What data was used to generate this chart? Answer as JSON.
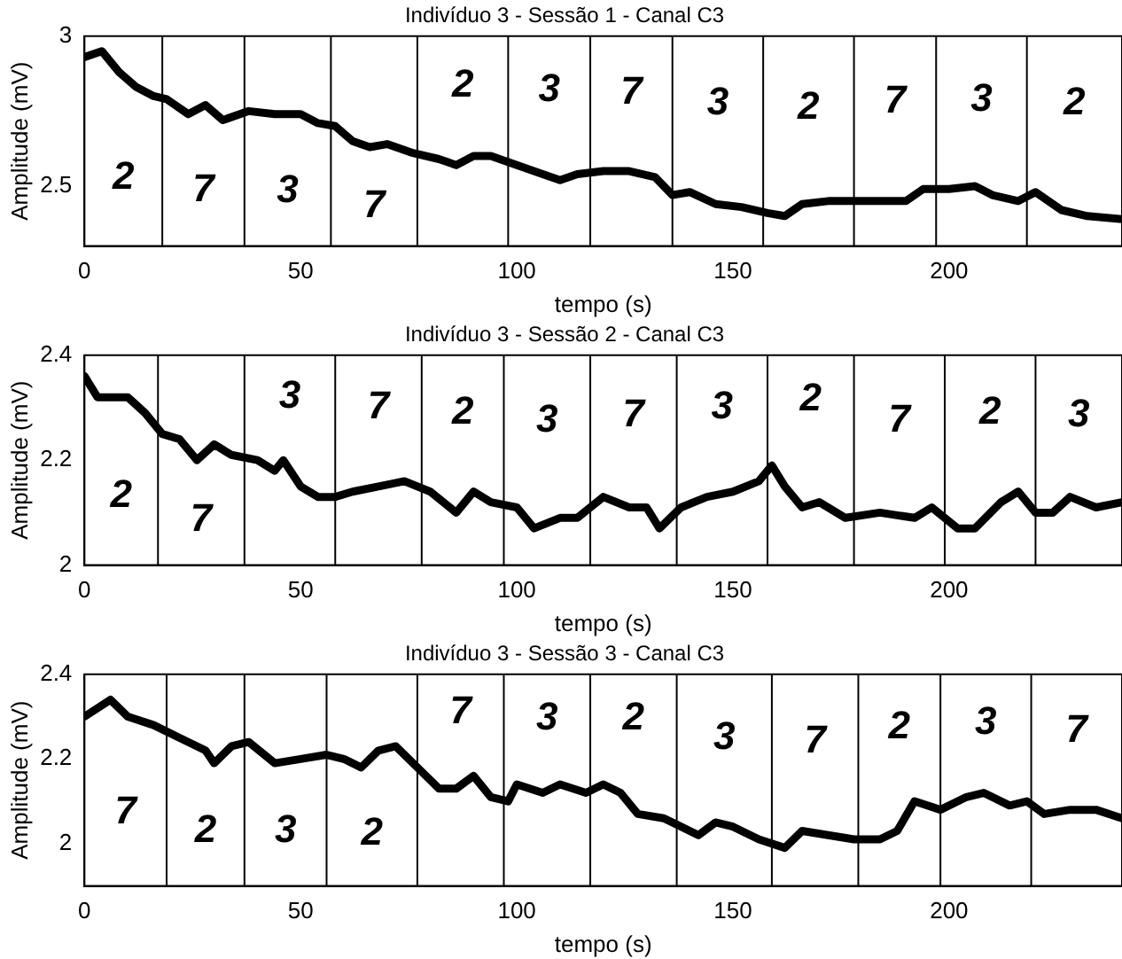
{
  "chart_data": [
    {
      "type": "line",
      "title": "Indivíduo 3 - Sessão 1 - Canal C3",
      "xlabel": "tempo (s)",
      "ylabel": "Amplitude (mV)",
      "xlim": [
        0,
        240
      ],
      "xticks": [
        0,
        50,
        100,
        150,
        200
      ],
      "ylim": [
        2.3,
        3
      ],
      "yticks": [
        2.5,
        3
      ],
      "x": [
        0,
        4,
        8,
        12,
        16,
        19,
        24,
        28,
        32,
        38,
        44,
        50,
        54,
        58,
        62,
        66,
        70,
        76,
        82,
        86,
        90,
        94,
        100,
        106,
        110,
        114,
        120,
        126,
        132,
        136,
        140,
        146,
        152,
        158,
        162,
        166,
        172,
        180,
        190,
        194,
        200,
        206,
        210,
        216,
        220,
        226,
        232,
        240
      ],
      "series": [
        {
          "color": "#000000",
          "values": [
            2.93,
            2.95,
            2.88,
            2.83,
            2.8,
            2.79,
            2.74,
            2.77,
            2.72,
            2.75,
            2.74,
            2.74,
            2.71,
            2.7,
            2.65,
            2.63,
            2.64,
            2.61,
            2.59,
            2.57,
            2.6,
            2.6,
            2.57,
            2.54,
            2.52,
            2.54,
            2.55,
            2.55,
            2.53,
            2.47,
            2.48,
            2.44,
            2.43,
            2.41,
            2.4,
            2.44,
            2.45,
            2.45,
            2.45,
            2.49,
            2.49,
            2.5,
            2.47,
            2.45,
            2.48,
            2.42,
            2.4,
            2.39
          ]
        }
      ],
      "ref_lines": [
        {
          "axis": "x",
          "value": 18,
          "color": "#000000"
        },
        {
          "axis": "x",
          "value": 37,
          "color": "#000000"
        },
        {
          "axis": "x",
          "value": 57,
          "color": "#000000"
        },
        {
          "axis": "x",
          "value": 77,
          "color": "#000000"
        },
        {
          "axis": "x",
          "value": 98,
          "color": "#000000"
        },
        {
          "axis": "x",
          "value": 117,
          "color": "#000000"
        },
        {
          "axis": "x",
          "value": 136,
          "color": "#000000"
        },
        {
          "axis": "x",
          "value": 157,
          "color": "#000000"
        },
        {
          "axis": "x",
          "value": 178,
          "color": "#000000"
        },
        {
          "axis": "x",
          "value": 197,
          "color": "#000000"
        },
        {
          "axis": "x",
          "value": 218,
          "color": "#000000"
        }
      ],
      "annotations": [
        "2",
        "7",
        "3",
        "7",
        "2",
        "3",
        "7",
        "3",
        "2",
        "7",
        "3",
        "2"
      ]
    },
    {
      "type": "line",
      "title": "Indivíduo 3 - Sessão 2 - Canal C3",
      "xlabel": "tempo (s)",
      "ylabel": "Amplitude (mV)",
      "xlim": [
        0,
        240
      ],
      "xticks": [
        0,
        50,
        100,
        150,
        200
      ],
      "ylim": [
        2,
        2.4
      ],
      "yticks": [
        2,
        2.2,
        2.4
      ],
      "x": [
        0,
        3,
        10,
        14,
        18,
        22,
        26,
        30,
        34,
        40,
        44,
        46,
        50,
        54,
        58,
        62,
        68,
        74,
        80,
        86,
        90,
        94,
        100,
        104,
        110,
        114,
        120,
        126,
        130,
        133,
        138,
        144,
        150,
        156,
        159,
        162,
        166,
        170,
        176,
        184,
        192,
        196,
        202,
        206,
        212,
        216,
        220,
        224,
        228,
        234,
        240
      ],
      "series": [
        {
          "color": "#000000",
          "values": [
            2.36,
            2.32,
            2.32,
            2.29,
            2.25,
            2.24,
            2.2,
            2.23,
            2.21,
            2.2,
            2.18,
            2.2,
            2.15,
            2.13,
            2.13,
            2.14,
            2.15,
            2.16,
            2.14,
            2.1,
            2.14,
            2.12,
            2.11,
            2.07,
            2.09,
            2.09,
            2.13,
            2.11,
            2.11,
            2.07,
            2.11,
            2.13,
            2.14,
            2.16,
            2.19,
            2.15,
            2.11,
            2.12,
            2.09,
            2.1,
            2.09,
            2.11,
            2.07,
            2.07,
            2.12,
            2.14,
            2.1,
            2.1,
            2.13,
            2.11,
            2.12
          ]
        }
      ],
      "ref_lines": [
        {
          "axis": "x",
          "value": 17,
          "color": "#000000"
        },
        {
          "axis": "x",
          "value": 37,
          "color": "#000000"
        },
        {
          "axis": "x",
          "value": 58,
          "color": "#000000"
        },
        {
          "axis": "x",
          "value": 78,
          "color": "#000000"
        },
        {
          "axis": "x",
          "value": 97,
          "color": "#000000"
        },
        {
          "axis": "x",
          "value": 117,
          "color": "#000000"
        },
        {
          "axis": "x",
          "value": 137,
          "color": "#000000"
        },
        {
          "axis": "x",
          "value": 158,
          "color": "#000000"
        },
        {
          "axis": "x",
          "value": 178,
          "color": "#000000"
        },
        {
          "axis": "x",
          "value": 199,
          "color": "#000000"
        },
        {
          "axis": "x",
          "value": 220,
          "color": "#000000"
        }
      ],
      "annotations": [
        "2",
        "7",
        "3",
        "7",
        "2",
        "3",
        "7",
        "3",
        "2",
        "7",
        "2",
        "3"
      ]
    },
    {
      "type": "line",
      "title": "Indivíduo 3 - Sessão 3 - Canal C3",
      "xlabel": "tempo (s)",
      "ylabel": "Amplitude (mV)",
      "xlim": [
        0,
        240
      ],
      "xticks": [
        0,
        50,
        100,
        150,
        200
      ],
      "ylim": [
        1.9,
        2.4
      ],
      "yticks": [
        2,
        2.2,
        2.4
      ],
      "x": [
        0,
        6,
        10,
        16,
        22,
        28,
        30,
        34,
        38,
        44,
        50,
        56,
        60,
        64,
        68,
        72,
        78,
        82,
        86,
        90,
        94,
        98,
        100,
        106,
        110,
        116,
        120,
        124,
        128,
        134,
        140,
        142,
        146,
        150,
        156,
        162,
        166,
        172,
        178,
        184,
        188,
        192,
        198,
        204,
        208,
        214,
        218,
        222,
        228,
        234,
        240
      ],
      "series": [
        {
          "color": "#000000",
          "values": [
            2.3,
            2.34,
            2.3,
            2.28,
            2.25,
            2.22,
            2.19,
            2.23,
            2.24,
            2.19,
            2.2,
            2.21,
            2.2,
            2.18,
            2.22,
            2.23,
            2.17,
            2.13,
            2.13,
            2.16,
            2.11,
            2.1,
            2.14,
            2.12,
            2.14,
            2.12,
            2.14,
            2.12,
            2.07,
            2.06,
            2.03,
            2.02,
            2.05,
            2.04,
            2.01,
            1.99,
            2.03,
            2.02,
            2.01,
            2.01,
            2.03,
            2.1,
            2.08,
            2.11,
            2.12,
            2.09,
            2.1,
            2.07,
            2.08,
            2.08,
            2.06
          ]
        }
      ],
      "ref_lines": [
        {
          "axis": "x",
          "value": 19,
          "color": "#000000"
        },
        {
          "axis": "x",
          "value": 37,
          "color": "#000000"
        },
        {
          "axis": "x",
          "value": 56,
          "color": "#000000"
        },
        {
          "axis": "x",
          "value": 77,
          "color": "#000000"
        },
        {
          "axis": "x",
          "value": 97,
          "color": "#000000"
        },
        {
          "axis": "x",
          "value": 117,
          "color": "#000000"
        },
        {
          "axis": "x",
          "value": 137,
          "color": "#000000"
        },
        {
          "axis": "x",
          "value": 159,
          "color": "#000000"
        },
        {
          "axis": "x",
          "value": 179,
          "color": "#000000"
        },
        {
          "axis": "x",
          "value": 198,
          "color": "#000000"
        },
        {
          "axis": "x",
          "value": 219,
          "color": "#000000"
        }
      ],
      "annotations": [
        "7",
        "2",
        "3",
        "2",
        "7",
        "3",
        "2",
        "3",
        "7",
        "2",
        "3",
        "7"
      ]
    }
  ]
}
